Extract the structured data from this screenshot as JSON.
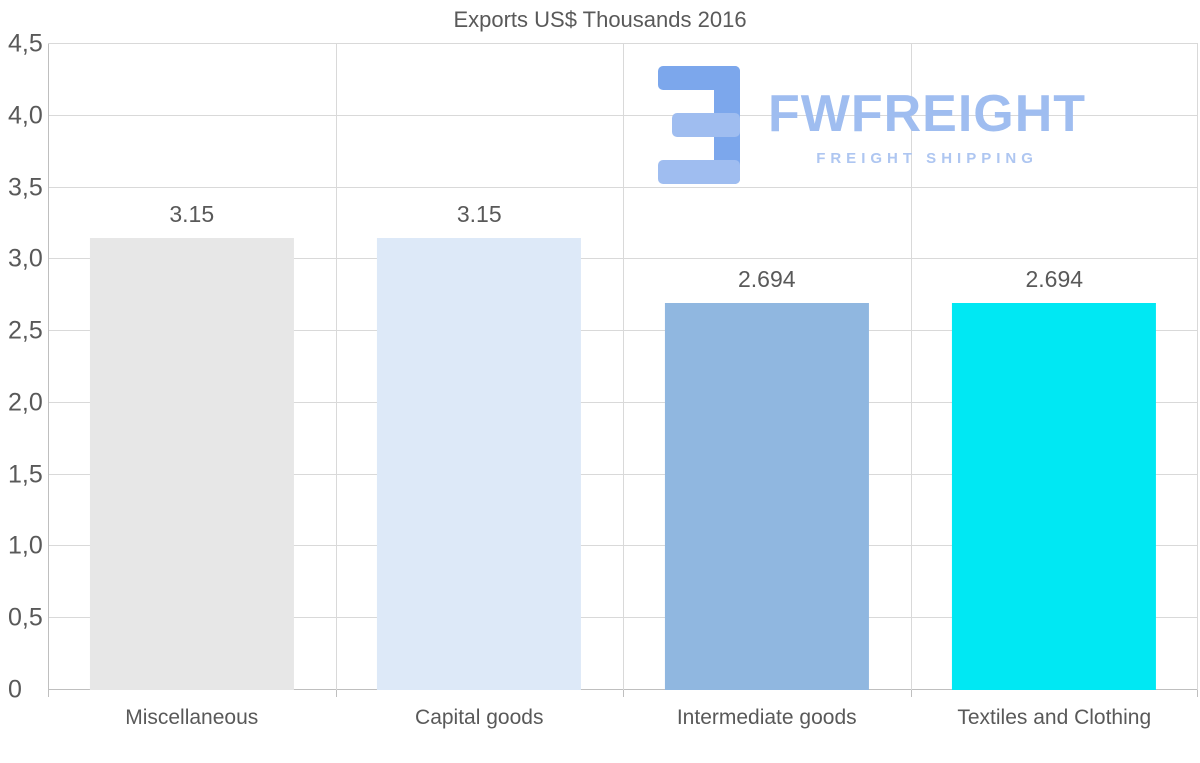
{
  "watermark": {
    "brand": "FWFREIGHT",
    "tagline": "FREIGHT SHIPPING"
  },
  "colors": {
    "text": "#595959",
    "grid": "#d9d9d9",
    "axis": "#bfbfbf",
    "logo_main": "#9fbdf0",
    "logo_dark": "#7ca7ec",
    "logo_light": "#aec6f1"
  },
  "chart_data": {
    "type": "bar",
    "title": "Exports US$ Thousands 2016",
    "categories": [
      "Miscellaneous",
      "Capital goods",
      "Intermediate goods",
      "Textiles and Clothing"
    ],
    "values": [
      3.15,
      3.15,
      2.694,
      2.694
    ],
    "value_labels": [
      "3.15",
      "3.15",
      "2.694",
      "2.694"
    ],
    "bar_colors": [
      "#e7e7e7",
      "#dde9f8",
      "#90b7e0",
      "#00e8f3"
    ],
    "xlabel": "",
    "ylabel": "",
    "ylim": [
      0,
      4.5
    ],
    "ytick_values": [
      0,
      0.5,
      1,
      1.5,
      2,
      2.5,
      3,
      3.5,
      4,
      4.5
    ],
    "ytick_labels": [
      "0",
      "0,5",
      "1,0",
      "1,5",
      "2,0",
      "2,5",
      "3,0",
      "3,5",
      "4,0",
      "4,5"
    ],
    "grid": "both",
    "legend": "none"
  }
}
